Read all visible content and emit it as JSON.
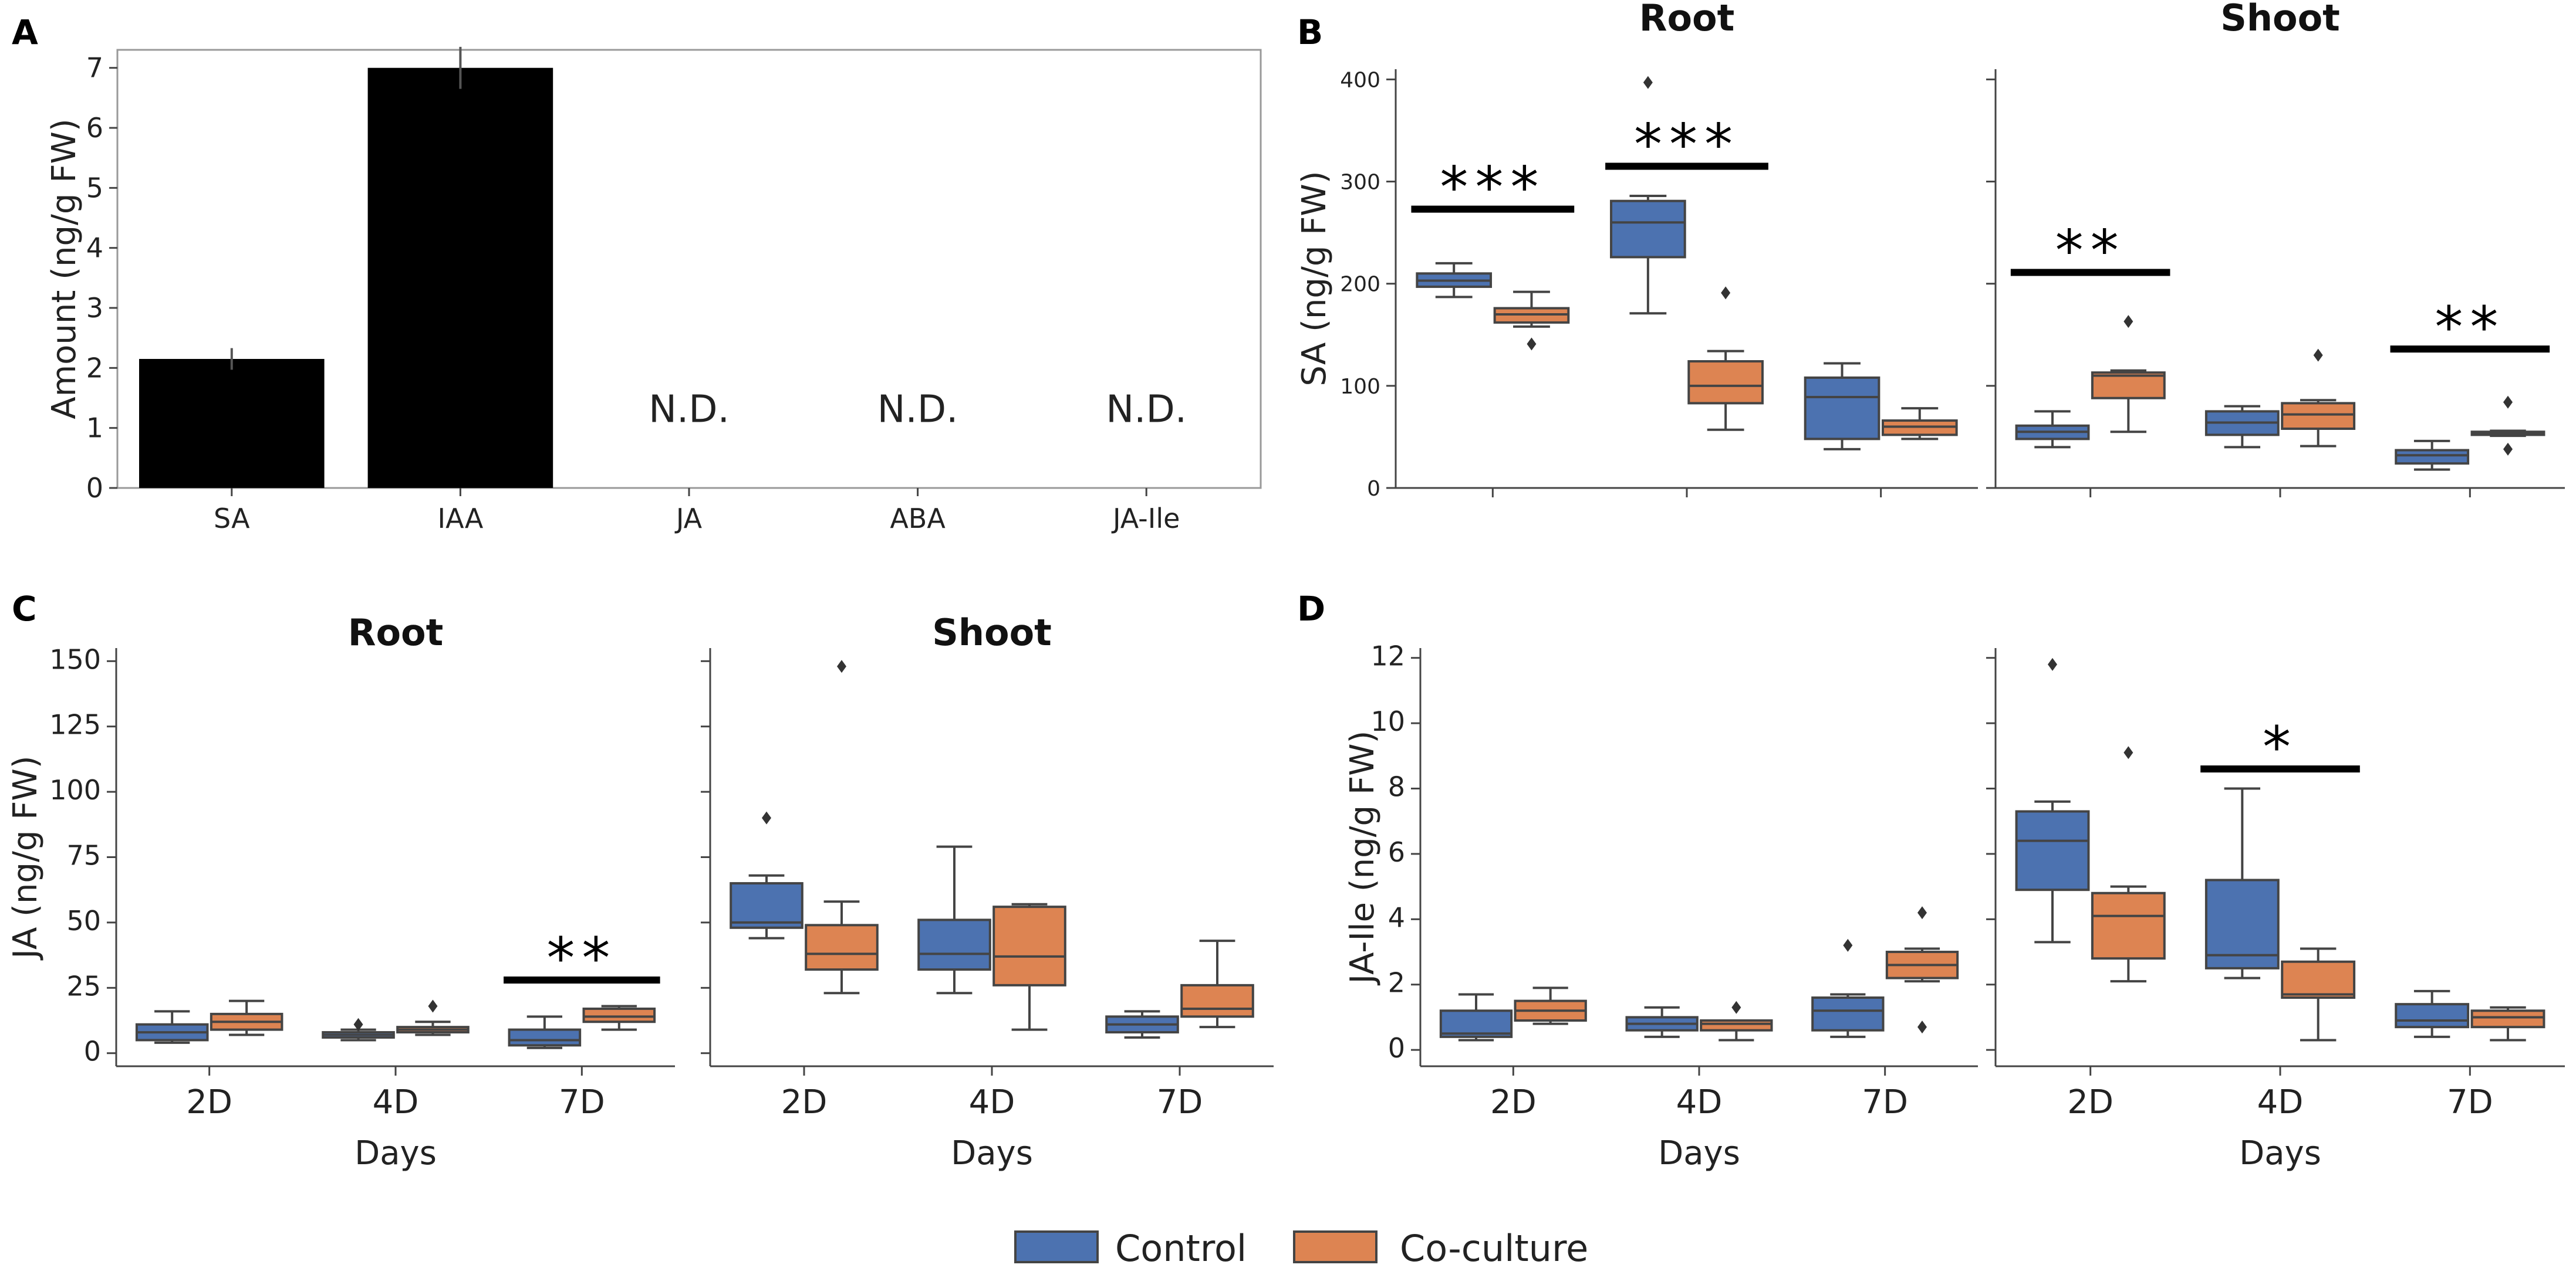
{
  "legend": {
    "items": [
      {
        "label": "Control",
        "color": "#4C72B0"
      },
      {
        "label": "Co-culture",
        "color": "#DD8452"
      }
    ]
  },
  "chart_data": [
    {
      "panel": "A",
      "type": "bar",
      "title": "",
      "ylabel": "Amount (ng/g FW)",
      "xlabel": "",
      "ylim": [
        0,
        7.3
      ],
      "yticks": [
        0,
        1,
        2,
        3,
        4,
        5,
        6,
        7
      ],
      "categories": [
        "SA",
        "IAA",
        "JA",
        "ABA",
        "JA-Ile"
      ],
      "values": [
        2.15,
        7.0,
        null,
        null,
        null
      ],
      "errors": [
        0.18,
        0.35,
        null,
        null,
        null
      ],
      "bar_color": "#000000",
      "nd_label": "N.D."
    },
    {
      "panel": "B",
      "type": "box",
      "ylabel": "SA (ng/g FW)",
      "xlabel": "",
      "ylim": [
        0,
        410
      ],
      "yticks": [
        0,
        100,
        200,
        300,
        400
      ],
      "categories": [
        "2D",
        "4D",
        "7D"
      ],
      "show_xticklabels": false,
      "subplots": [
        {
          "title": "Root",
          "boxes": [
            {
              "group": "Control",
              "category": "2D",
              "wlo": 187,
              "q1": 197,
              "med": 203,
              "q3": 210,
              "whi": 220,
              "outliers": []
            },
            {
              "group": "Co-culture",
              "category": "2D",
              "wlo": 158,
              "q1": 162,
              "med": 170,
              "q3": 176,
              "whi": 192,
              "outliers": [
                141
              ]
            },
            {
              "group": "Control",
              "category": "4D",
              "wlo": 171,
              "q1": 226,
              "med": 260,
              "q3": 281,
              "whi": 286,
              "outliers": [
                397
              ]
            },
            {
              "group": "Co-culture",
              "category": "4D",
              "wlo": 57,
              "q1": 83,
              "med": 100,
              "q3": 124,
              "whi": 134,
              "outliers": [
                191
              ]
            },
            {
              "group": "Control",
              "category": "7D",
              "wlo": 38,
              "q1": 48,
              "med": 89,
              "q3": 108,
              "whi": 122,
              "outliers": []
            },
            {
              "group": "Co-culture",
              "category": "7D",
              "wlo": 48,
              "q1": 52,
              "med": 60,
              "q3": 66,
              "whi": 78,
              "outliers": []
            }
          ],
          "significance": [
            {
              "category": "2D",
              "label": "***",
              "y": 273
            },
            {
              "category": "4D",
              "label": "***",
              "y": 315
            }
          ]
        },
        {
          "title": "Shoot",
          "boxes": [
            {
              "group": "Control",
              "category": "2D",
              "wlo": 40,
              "q1": 48,
              "med": 55,
              "q3": 61,
              "whi": 75,
              "outliers": []
            },
            {
              "group": "Co-culture",
              "category": "2D",
              "wlo": 55,
              "q1": 88,
              "med": 110,
              "q3": 113,
              "whi": 115,
              "outliers": [
                163
              ]
            },
            {
              "group": "Control",
              "category": "4D",
              "wlo": 40,
              "q1": 52,
              "med": 64,
              "q3": 75,
              "whi": 80,
              "outliers": []
            },
            {
              "group": "Co-culture",
              "category": "4D",
              "wlo": 41,
              "q1": 58,
              "med": 72,
              "q3": 83,
              "whi": 86,
              "outliers": [
                130
              ]
            },
            {
              "group": "Control",
              "category": "7D",
              "wlo": 18,
              "q1": 24,
              "med": 32,
              "q3": 37,
              "whi": 46,
              "outliers": []
            },
            {
              "group": "Co-culture",
              "category": "7D",
              "wlo": 51,
              "q1": 52,
              "med": 54,
              "q3": 55,
              "whi": 56,
              "outliers": [
                38,
                84
              ]
            }
          ],
          "significance": [
            {
              "category": "2D",
              "label": "**",
              "y": 211
            },
            {
              "category": "7D",
              "label": "**",
              "y": 136
            }
          ]
        }
      ]
    },
    {
      "panel": "C",
      "type": "box",
      "ylabel": "JA (ng/g FW)",
      "xlabel": "Days",
      "ylim": [
        -5,
        155
      ],
      "yticks": [
        0,
        25,
        50,
        75,
        100,
        125,
        150
      ],
      "categories": [
        "2D",
        "4D",
        "7D"
      ],
      "subplots": [
        {
          "title": "Root",
          "boxes": [
            {
              "group": "Control",
              "category": "2D",
              "wlo": 4,
              "q1": 5,
              "med": 8,
              "q3": 11,
              "whi": 16,
              "outliers": []
            },
            {
              "group": "Co-culture",
              "category": "2D",
              "wlo": 7,
              "q1": 9,
              "med": 12,
              "q3": 15,
              "whi": 20,
              "outliers": []
            },
            {
              "group": "Control",
              "category": "4D",
              "wlo": 5,
              "q1": 6,
              "med": 7,
              "q3": 8,
              "whi": 9,
              "outliers": [
                11
              ]
            },
            {
              "group": "Co-culture",
              "category": "4D",
              "wlo": 7,
              "q1": 8,
              "med": 9,
              "q3": 10,
              "whi": 12,
              "outliers": [
                18
              ]
            },
            {
              "group": "Control",
              "category": "7D",
              "wlo": 2,
              "q1": 3,
              "med": 5,
              "q3": 9,
              "whi": 14,
              "outliers": []
            },
            {
              "group": "Co-culture",
              "category": "7D",
              "wlo": 9,
              "q1": 12,
              "med": 14,
              "q3": 17,
              "whi": 18,
              "outliers": []
            }
          ],
          "significance": [
            {
              "category": "7D",
              "label": "**",
              "y": 28
            }
          ]
        },
        {
          "title": "Shoot",
          "boxes": [
            {
              "group": "Control",
              "category": "2D",
              "wlo": 44,
              "q1": 48,
              "med": 50,
              "q3": 65,
              "whi": 68,
              "outliers": [
                90
              ]
            },
            {
              "group": "Co-culture",
              "category": "2D",
              "wlo": 23,
              "q1": 32,
              "med": 38,
              "q3": 49,
              "whi": 58,
              "outliers": [
                148
              ]
            },
            {
              "group": "Control",
              "category": "4D",
              "wlo": 23,
              "q1": 32,
              "med": 38,
              "q3": 51,
              "whi": 79,
              "outliers": []
            },
            {
              "group": "Co-culture",
              "category": "4D",
              "wlo": 9,
              "q1": 26,
              "med": 37,
              "q3": 56,
              "whi": 57,
              "outliers": []
            },
            {
              "group": "Control",
              "category": "7D",
              "wlo": 6,
              "q1": 8,
              "med": 11,
              "q3": 14,
              "whi": 16,
              "outliers": []
            },
            {
              "group": "Co-culture",
              "category": "7D",
              "wlo": 10,
              "q1": 14,
              "med": 17,
              "q3": 26,
              "whi": 43,
              "outliers": []
            }
          ],
          "significance": []
        }
      ]
    },
    {
      "panel": "D",
      "type": "box",
      "ylabel": "JA-Ile (ng/g FW)",
      "xlabel": "Days",
      "ylim": [
        -0.5,
        12.3
      ],
      "yticks": [
        0,
        2,
        4,
        6,
        8,
        10,
        12
      ],
      "categories": [
        "2D",
        "4D",
        "7D"
      ],
      "subplots": [
        {
          "title": "",
          "boxes": [
            {
              "group": "Control",
              "category": "2D",
              "wlo": 0.3,
              "q1": 0.4,
              "med": 0.5,
              "q3": 1.2,
              "whi": 1.7,
              "outliers": []
            },
            {
              "group": "Co-culture",
              "category": "2D",
              "wlo": 0.8,
              "q1": 0.9,
              "med": 1.2,
              "q3": 1.5,
              "whi": 1.9,
              "outliers": []
            },
            {
              "group": "Control",
              "category": "4D",
              "wlo": 0.4,
              "q1": 0.6,
              "med": 0.8,
              "q3": 1.0,
              "whi": 1.3,
              "outliers": []
            },
            {
              "group": "Co-culture",
              "category": "4D",
              "wlo": 0.3,
              "q1": 0.6,
              "med": 0.8,
              "q3": 0.9,
              "whi": 0.9,
              "outliers": [
                1.3
              ]
            },
            {
              "group": "Control",
              "category": "7D",
              "wlo": 0.4,
              "q1": 0.6,
              "med": 1.2,
              "q3": 1.6,
              "whi": 1.7,
              "outliers": [
                3.2
              ]
            },
            {
              "group": "Co-culture",
              "category": "7D",
              "wlo": 2.1,
              "q1": 2.2,
              "med": 2.6,
              "q3": 3.0,
              "whi": 3.1,
              "outliers": [
                0.7,
                4.2
              ]
            }
          ],
          "significance": []
        },
        {
          "title": "",
          "boxes": [
            {
              "group": "Control",
              "category": "2D",
              "wlo": 3.3,
              "q1": 4.9,
              "med": 6.4,
              "q3": 7.3,
              "whi": 7.6,
              "outliers": [
                11.8
              ]
            },
            {
              "group": "Co-culture",
              "category": "2D",
              "wlo": 2.1,
              "q1": 2.8,
              "med": 4.1,
              "q3": 4.8,
              "whi": 5.0,
              "outliers": [
                9.1
              ]
            },
            {
              "group": "Control",
              "category": "4D",
              "wlo": 2.2,
              "q1": 2.5,
              "med": 2.9,
              "q3": 5.2,
              "whi": 8.0,
              "outliers": []
            },
            {
              "group": "Co-culture",
              "category": "4D",
              "wlo": 0.3,
              "q1": 1.6,
              "med": 1.7,
              "q3": 2.7,
              "whi": 3.1,
              "outliers": []
            },
            {
              "group": "Control",
              "category": "7D",
              "wlo": 0.4,
              "q1": 0.7,
              "med": 0.9,
              "q3": 1.4,
              "whi": 1.8,
              "outliers": []
            },
            {
              "group": "Co-culture",
              "category": "7D",
              "wlo": 0.3,
              "q1": 0.7,
              "med": 1.0,
              "q3": 1.2,
              "whi": 1.3,
              "outliers": []
            }
          ],
          "significance": [
            {
              "category": "4D",
              "label": "*",
              "y": 8.6
            }
          ]
        }
      ]
    }
  ]
}
